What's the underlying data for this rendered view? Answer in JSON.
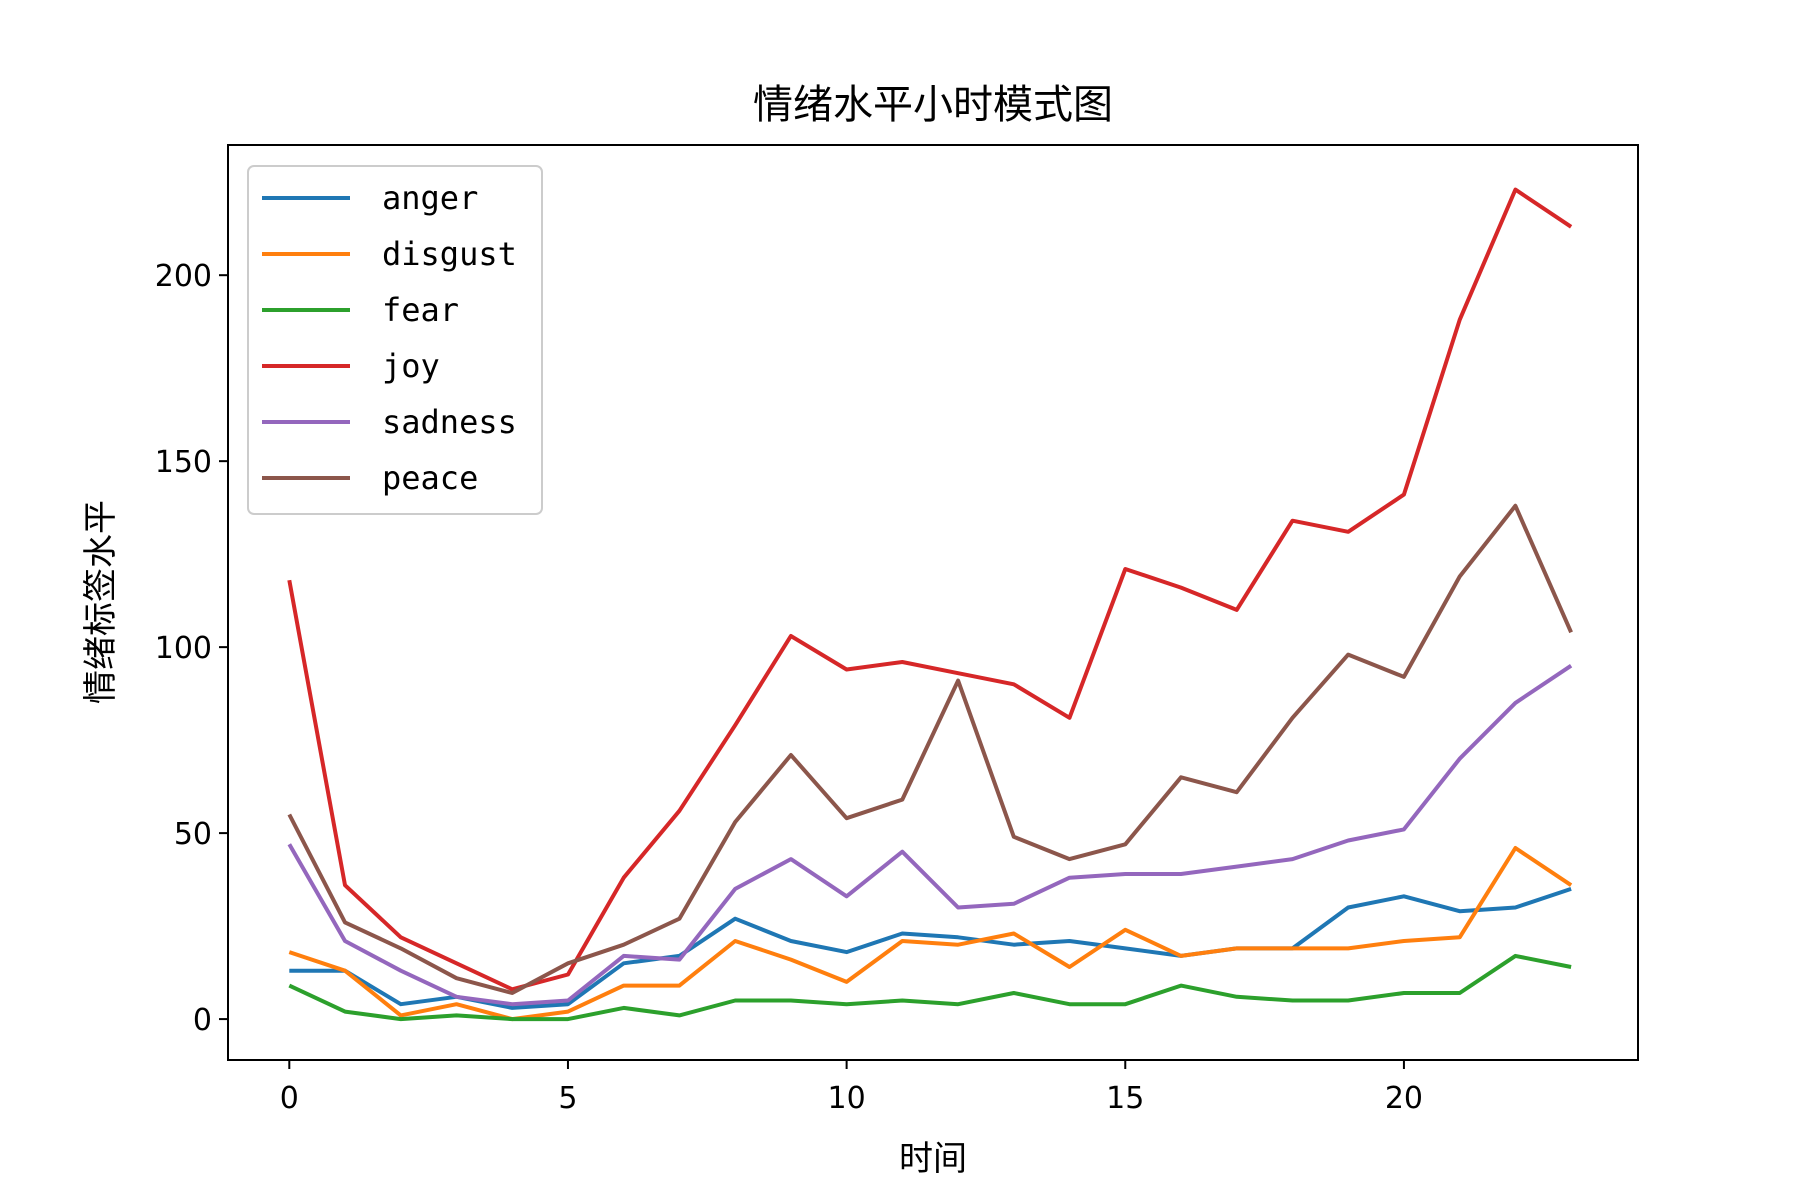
{
  "chart_data": {
    "type": "line",
    "title": "情绪水平小时模式图",
    "xlabel": "时间",
    "ylabel": "情绪标签水平",
    "xlim": [
      -1.1,
      24.2
    ],
    "ylim": [
      -11,
      235
    ],
    "xticks": [
      0,
      5,
      10,
      15,
      20
    ],
    "yticks": [
      0,
      50,
      100,
      150,
      200
    ],
    "grid": false,
    "legend_position": "upper-left",
    "x": [
      0,
      1,
      2,
      3,
      4,
      5,
      6,
      7,
      8,
      9,
      10,
      11,
      12,
      13,
      14,
      15,
      16,
      17,
      18,
      19,
      20,
      21,
      22,
      23
    ],
    "series": [
      {
        "name": "anger",
        "color": "#1f77b4",
        "values": [
          13,
          13,
          4,
          6,
          3,
          4,
          15,
          17,
          27,
          21,
          18,
          23,
          22,
          20,
          21,
          19,
          17,
          19,
          19,
          30,
          33,
          29,
          30,
          35
        ]
      },
      {
        "name": "disgust",
        "color": "#ff7f0e",
        "values": [
          18,
          13,
          1,
          4,
          0,
          2,
          9,
          9,
          21,
          16,
          10,
          21,
          20,
          23,
          14,
          24,
          17,
          19,
          19,
          19,
          21,
          22,
          46,
          36
        ]
      },
      {
        "name": "fear",
        "color": "#2ca02c",
        "values": [
          9,
          2,
          0,
          1,
          0,
          0,
          3,
          1,
          5,
          5,
          4,
          5,
          4,
          7,
          4,
          4,
          9,
          6,
          5,
          5,
          7,
          7,
          17,
          14
        ]
      },
      {
        "name": "joy",
        "color": "#d62728",
        "values": [
          118,
          36,
          22,
          15,
          8,
          12,
          38,
          56,
          79,
          103,
          94,
          96,
          93,
          90,
          81,
          121,
          116,
          110,
          134,
          131,
          141,
          188,
          223,
          213
        ]
      },
      {
        "name": "sadness",
        "color": "#9467bd",
        "values": [
          47,
          21,
          13,
          6,
          4,
          5,
          17,
          16,
          35,
          43,
          33,
          45,
          30,
          31,
          38,
          39,
          39,
          41,
          43,
          48,
          51,
          70,
          85,
          95
        ]
      },
      {
        "name": "peace",
        "color": "#8c564b",
        "values": [
          55,
          26,
          19,
          11,
          7,
          15,
          20,
          27,
          53,
          71,
          54,
          59,
          91,
          49,
          43,
          47,
          65,
          61,
          81,
          98,
          92,
          119,
          138,
          104
        ]
      }
    ]
  }
}
